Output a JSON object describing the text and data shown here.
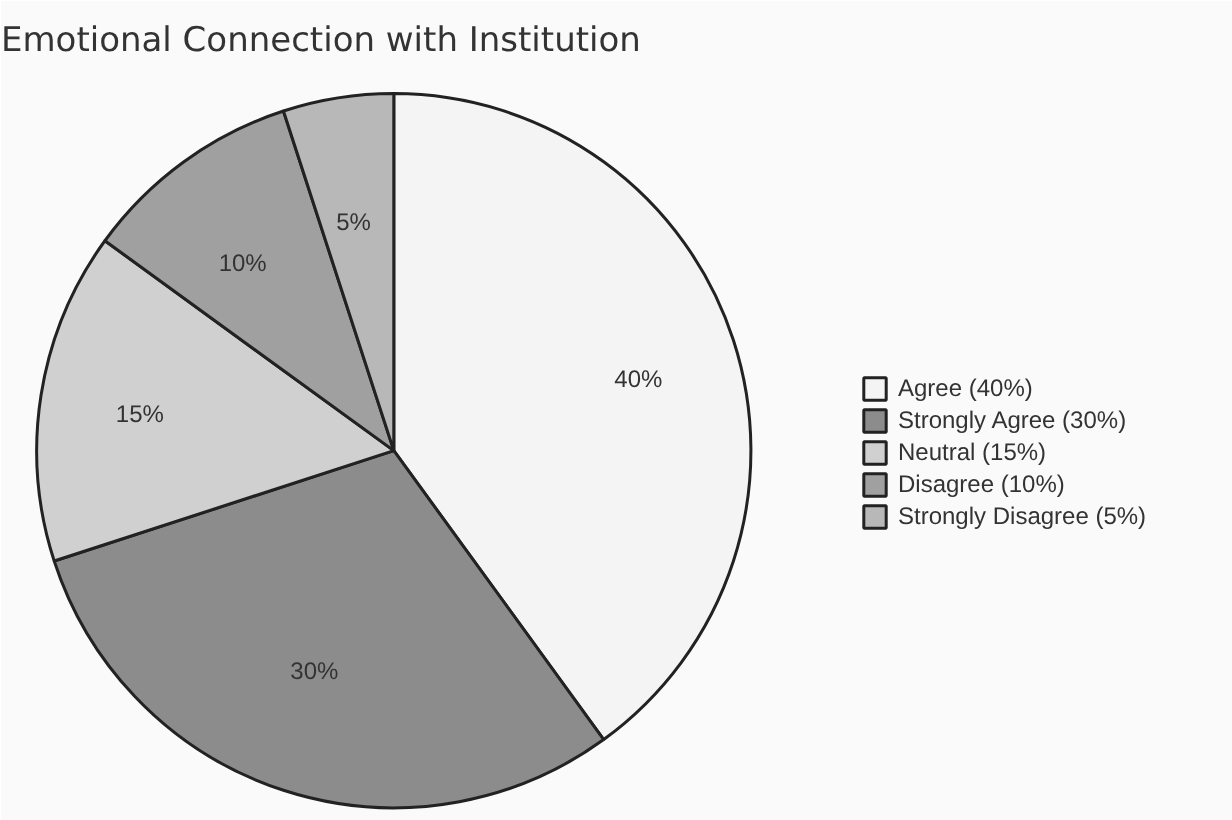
{
  "chart_data": {
    "type": "pie",
    "title": "Emotional Connection with Institution",
    "categories": [
      "Agree (40%)",
      "Strongly Agree (30%)",
      "Neutral (15%)",
      "Disagree (10%)",
      "Strongly Disagree (5%)"
    ],
    "values": [
      40,
      30,
      15,
      10,
      5
    ],
    "value_labels": [
      "40%",
      "30%",
      "15%",
      "10%",
      "5%"
    ],
    "colors": [
      "#f4f4f4",
      "#8c8c8c",
      "#d0d0d0",
      "#a0a0a0",
      "#b8b8b8"
    ],
    "legend": "right"
  }
}
